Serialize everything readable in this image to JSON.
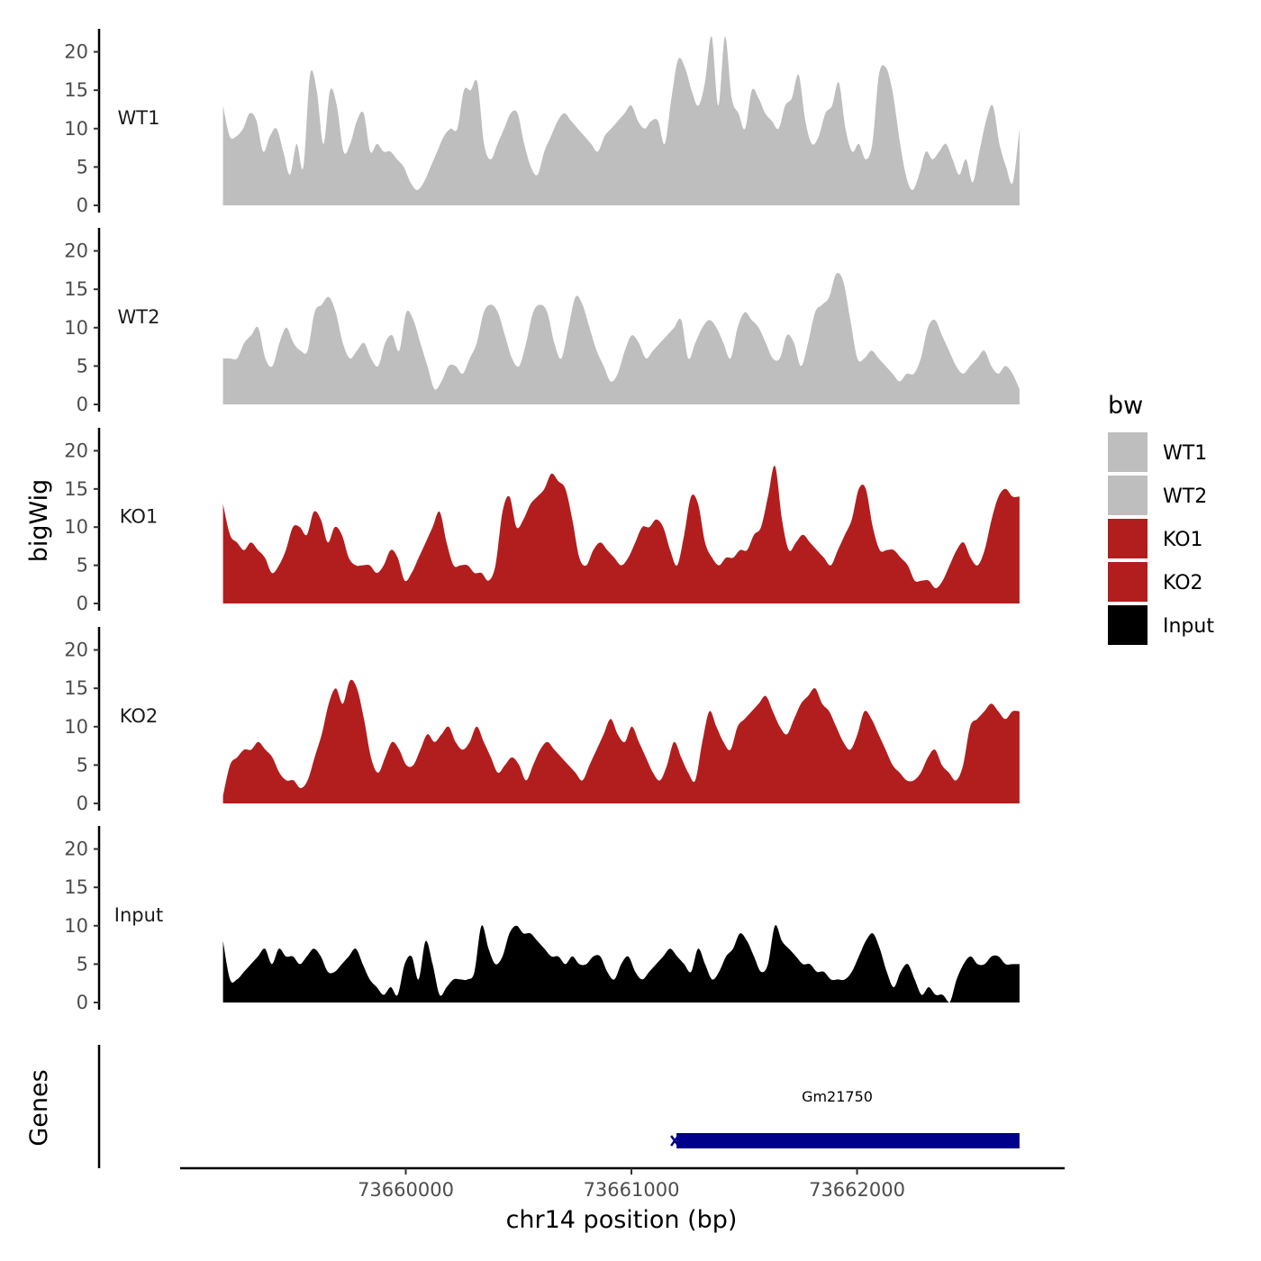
{
  "chart_data": {
    "type": "area",
    "ylabel": "bigWig",
    "xlabel": "chr14 position (bp)",
    "genes_label": "Genes",
    "ylim": [
      0,
      23
    ],
    "yticks": [
      0,
      5,
      10,
      15,
      20
    ],
    "xlim": [
      73659000,
      73662920
    ],
    "xticks": [
      {
        "value": 73660000,
        "label": "73660000"
      },
      {
        "value": 73661000,
        "label": "73661000"
      },
      {
        "value": 73662000,
        "label": "73662000"
      }
    ],
    "series_x_start": 73659190,
    "series_x_end": 73662720,
    "legend": {
      "title": "bw",
      "entries": [
        {
          "name": "WT1",
          "color": "#bebebe"
        },
        {
          "name": "WT2",
          "color": "#bebebe"
        },
        {
          "name": "KO1",
          "color": "#b21e1e"
        },
        {
          "name": "KO2",
          "color": "#b21e1e"
        },
        {
          "name": "Input",
          "color": "#000000"
        }
      ]
    },
    "tracks": [
      {
        "name": "WT1",
        "color": "#bebebe",
        "values": [
          13,
          9,
          9,
          10,
          12,
          11,
          7,
          9,
          10,
          7,
          4,
          8,
          5,
          17,
          15,
          8,
          15,
          13,
          7,
          8,
          11,
          12,
          7,
          8,
          7,
          7,
          6,
          5,
          3,
          2,
          3,
          5,
          7,
          9,
          10,
          10,
          15,
          15,
          16,
          8,
          6,
          8,
          10,
          12,
          12,
          8,
          5,
          4,
          7,
          9,
          11,
          12,
          11,
          10,
          9,
          8,
          7,
          9,
          10,
          11,
          12,
          13,
          11,
          10,
          11,
          11,
          8,
          14,
          19,
          18,
          15,
          13,
          16,
          22,
          13,
          22,
          14,
          12,
          10,
          15,
          14,
          12,
          11,
          10,
          13,
          14,
          17,
          11,
          8,
          9,
          12,
          13,
          16,
          10,
          7,
          8,
          6,
          8,
          17,
          18,
          15,
          9,
          4,
          2,
          4,
          7,
          6,
          7,
          8,
          6,
          4,
          6,
          3,
          7,
          11,
          13,
          8,
          5,
          3,
          10
        ]
      },
      {
        "name": "WT2",
        "color": "#bebebe",
        "values": [
          6,
          6,
          6,
          8,
          9,
          10,
          6,
          5,
          8,
          10,
          8,
          7,
          7,
          12,
          13,
          14,
          12,
          8,
          6,
          7,
          8,
          6,
          5,
          8,
          9,
          7,
          12,
          11,
          8,
          5,
          2,
          3,
          5,
          5,
          4,
          6,
          8,
          12,
          13,
          12,
          9,
          6,
          5,
          8,
          12,
          13,
          12,
          8,
          6,
          10,
          14,
          13,
          10,
          7,
          5,
          3,
          4,
          7,
          9,
          8,
          6,
          7,
          8,
          9,
          10,
          11,
          6,
          8,
          10,
          11,
          10,
          8,
          6,
          10,
          12,
          11,
          10,
          8,
          6,
          6,
          9,
          8,
          5,
          8,
          12,
          13,
          14,
          17,
          16,
          11,
          6,
          6,
          7,
          6,
          5,
          4,
          3,
          4,
          4,
          6,
          10,
          11,
          9,
          7,
          5,
          4,
          5,
          6,
          7,
          5,
          4,
          5,
          4,
          2
        ]
      },
      {
        "name": "KO1",
        "color": "#b21e1e",
        "values": [
          13,
          9,
          8,
          7,
          8,
          7,
          6,
          4,
          5,
          7,
          10,
          10,
          9,
          12,
          11,
          8,
          10,
          9,
          6,
          5,
          5,
          5,
          4,
          5,
          7,
          6,
          3,
          4,
          6,
          8,
          10,
          12,
          8,
          5,
          5,
          5,
          4,
          4,
          3,
          5,
          12,
          14,
          10,
          11,
          13,
          14,
          15,
          17,
          16,
          15,
          11,
          6,
          5,
          7,
          8,
          7,
          6,
          5,
          6,
          8,
          10,
          10,
          11,
          10,
          7,
          5,
          9,
          14,
          13,
          8,
          6,
          5,
          6,
          6,
          7,
          7,
          9,
          10,
          14,
          18,
          11,
          7,
          8,
          9,
          8,
          7,
          6,
          5,
          7,
          9,
          11,
          15,
          15,
          10,
          7,
          7,
          7,
          6,
          5,
          3,
          3,
          3,
          2,
          3,
          5,
          7,
          8,
          6,
          5,
          7,
          11,
          14,
          15,
          14,
          14
        ]
      },
      {
        "name": "KO2",
        "color": "#b21e1e",
        "values": [
          1,
          5,
          6,
          7,
          7,
          8,
          7,
          6,
          4,
          3,
          3,
          2,
          3,
          6,
          9,
          13,
          15,
          13,
          16,
          15,
          11,
          6,
          4,
          6,
          8,
          7,
          5,
          5,
          7,
          9,
          8,
          9,
          10,
          8,
          7,
          8,
          10,
          8,
          6,
          4,
          5,
          6,
          5,
          3,
          5,
          7,
          8,
          7,
          6,
          5,
          4,
          3,
          5,
          7,
          9,
          11,
          9,
          8,
          10,
          8,
          6,
          4,
          3,
          5,
          8,
          6,
          4,
          3,
          8,
          12,
          10,
          8,
          7,
          10,
          11,
          12,
          13,
          14,
          12,
          10,
          9,
          11,
          13,
          14,
          15,
          13,
          12,
          10,
          8,
          7,
          9,
          12,
          11,
          9,
          7,
          5,
          4,
          3,
          3,
          4,
          6,
          7,
          5,
          4,
          3,
          5,
          10,
          11,
          12,
          13,
          12,
          11,
          12,
          12
        ]
      },
      {
        "name": "Input",
        "color": "#000000",
        "values": [
          8,
          3,
          3,
          4,
          5,
          6,
          7,
          5,
          7,
          6,
          6,
          5,
          6,
          7,
          6,
          4,
          4,
          5,
          6,
          7,
          5,
          3,
          2,
          1,
          2,
          1,
          5,
          6,
          3,
          8,
          5,
          1,
          2,
          3,
          3,
          3,
          4,
          10,
          7,
          5,
          6,
          9,
          10,
          9,
          9,
          8,
          7,
          6,
          6,
          5,
          6,
          5,
          5,
          6,
          6,
          4,
          3,
          5,
          6,
          4,
          3,
          4,
          5,
          6,
          7,
          6,
          5,
          4,
          7,
          5,
          3,
          4,
          6,
          7,
          9,
          8,
          6,
          4,
          5,
          10,
          8,
          7,
          6,
          5,
          5,
          4,
          4,
          3,
          3,
          3,
          4,
          6,
          8,
          9,
          7,
          4,
          2,
          4,
          5,
          3,
          1,
          2,
          1,
          1,
          0,
          3,
          5,
          6,
          5,
          5,
          6,
          6,
          5,
          5,
          5
        ]
      }
    ],
    "genes": [
      {
        "name": "Gm21750",
        "start": 73661200,
        "end": 73662720,
        "color": "#00008b"
      }
    ]
  }
}
